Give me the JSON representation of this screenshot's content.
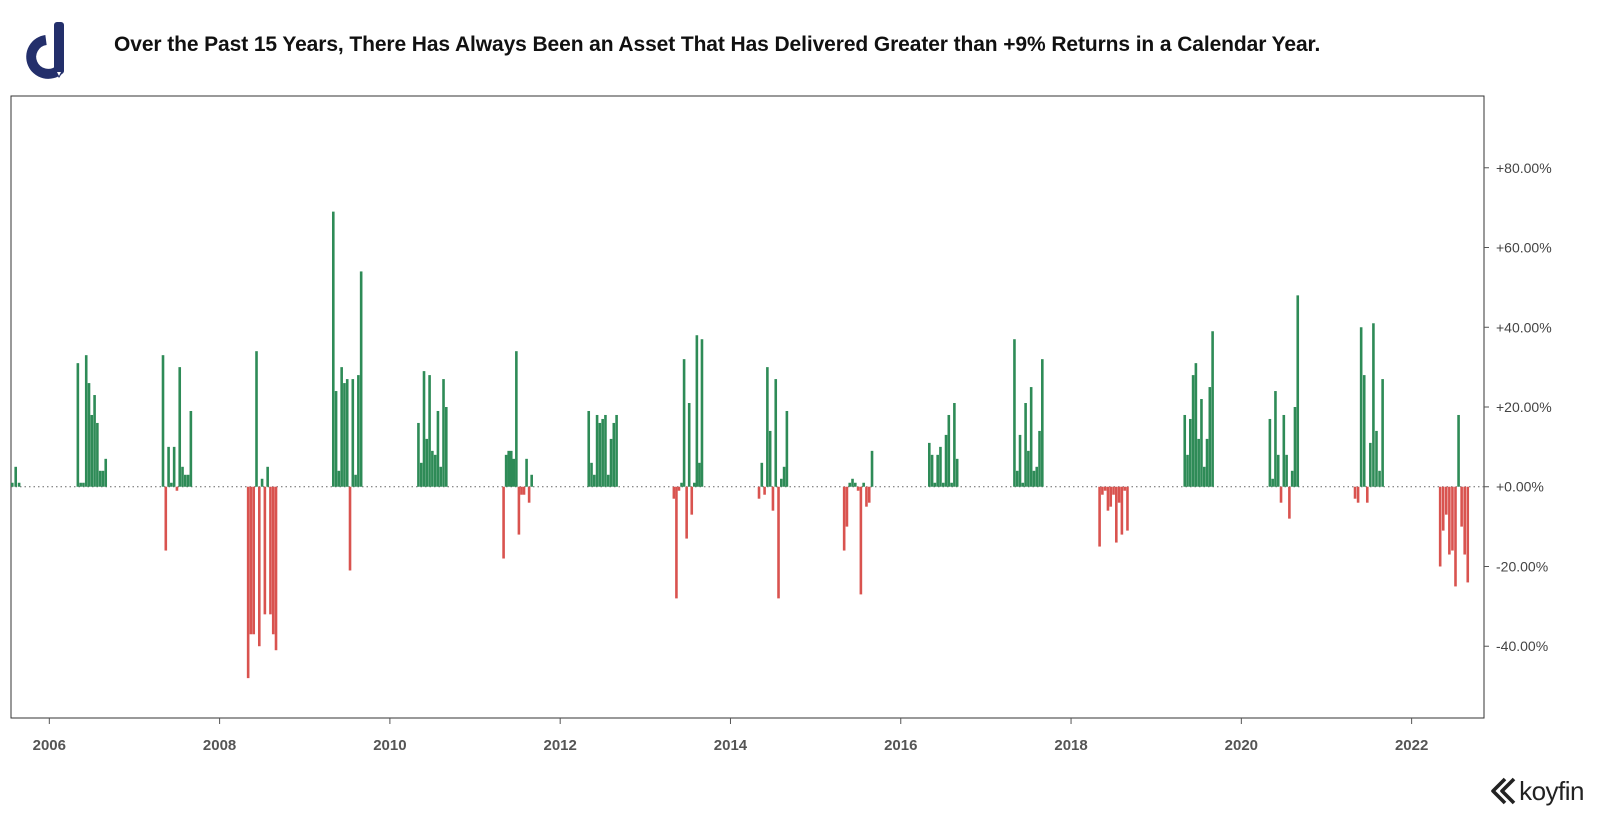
{
  "header": {
    "title": "Over the Past 15 Years, There Has Always Been an Asset That Has Delivered Greater than +9% Returns in a Calendar Year."
  },
  "brand": {
    "logo_icon": "d-pen-logo-icon",
    "text": "koyfin",
    "icon": "koyfin-chevron-icon"
  },
  "colors": {
    "positive": "#2e8b57",
    "negative": "#d9534f",
    "logo_blue": "#232f6b"
  },
  "chart_data": {
    "type": "bar",
    "title": "",
    "xlabel": "",
    "ylabel": "",
    "xlim": [
      2005.55,
      2022.85
    ],
    "ylim": [
      -58,
      98
    ],
    "x_ticks": [
      2006,
      2008,
      2010,
      2012,
      2014,
      2016,
      2018,
      2020,
      2022
    ],
    "x_tick_labels": [
      "2006",
      "2008",
      "2010",
      "2012",
      "2014",
      "2016",
      "2018",
      "2020",
      "2022"
    ],
    "y_ticks": [
      80,
      60,
      40,
      20,
      0,
      -20,
      -40
    ],
    "y_tick_labels": [
      "+80.00%",
      "+60.00%",
      "+40.00%",
      "+20.00%",
      "+0.00%",
      "-20.00%",
      "-40.00%"
    ],
    "grid": false,
    "zero_line": "dotted",
    "y_axis_position": "right",
    "annual_returns": [
      {
        "year": 2005,
        "values": [
          1,
          5,
          1
        ]
      },
      {
        "year": 2006,
        "values": [
          31,
          1,
          1,
          33,
          26,
          18,
          23,
          16,
          4,
          4,
          7
        ]
      },
      {
        "year": 2007,
        "values": [
          33,
          -16,
          10,
          1,
          10,
          -1,
          30,
          5,
          3,
          3,
          19
        ]
      },
      {
        "year": 2008,
        "values": [
          -48,
          -37,
          -37,
          34,
          -40,
          2,
          -32,
          5,
          -32,
          -37,
          -41
        ]
      },
      {
        "year": 2009,
        "values": [
          69,
          24,
          4,
          30,
          26,
          27,
          -21,
          27,
          3,
          28,
          54
        ]
      },
      {
        "year": 2010,
        "values": [
          16,
          6,
          29,
          12,
          28,
          9,
          8,
          19,
          5,
          27,
          20
        ]
      },
      {
        "year": 2011,
        "values": [
          -18,
          8,
          9,
          9,
          7,
          34,
          -12,
          -2,
          -2,
          7,
          -4,
          3
        ]
      },
      {
        "year": 2012,
        "values": [
          19,
          6,
          3,
          18,
          16,
          17,
          18,
          3,
          12,
          16,
          18
        ]
      },
      {
        "year": 2013,
        "values": [
          -3,
          -28,
          -1,
          1,
          32,
          -13,
          21,
          -7,
          1,
          38,
          6,
          37
        ]
      },
      {
        "year": 2014,
        "values": [
          -3,
          6,
          -2,
          30,
          14,
          -6,
          27,
          -28,
          2,
          5,
          19
        ]
      },
      {
        "year": 2015,
        "values": [
          -16,
          -10,
          1,
          2,
          1,
          -1,
          -27,
          1,
          -5,
          -4,
          9
        ]
      },
      {
        "year": 2016,
        "values": [
          11,
          8,
          1,
          8,
          10,
          1,
          13,
          18,
          1,
          21,
          7
        ]
      },
      {
        "year": 2017,
        "values": [
          37,
          4,
          13,
          1,
          21,
          9,
          25,
          4,
          5,
          14,
          32
        ]
      },
      {
        "year": 2018,
        "values": [
          -15,
          -2,
          -1,
          -6,
          -5,
          -2,
          -14,
          -4,
          -12,
          -1,
          -11
        ]
      },
      {
        "year": 2019,
        "values": [
          18,
          8,
          17,
          28,
          31,
          12,
          22,
          5,
          12,
          25,
          39
        ]
      },
      {
        "year": 2020,
        "values": [
          17,
          2,
          24,
          8,
          -4,
          18,
          8,
          -8,
          4,
          20,
          48
        ]
      },
      {
        "year": 2021,
        "values": [
          -3,
          -4,
          40,
          28,
          -4,
          11,
          41,
          14,
          4,
          27
        ]
      },
      {
        "year": 2022,
        "values": [
          -20,
          -11,
          -7,
          -17,
          -16,
          -25,
          18,
          -10,
          -17,
          -24
        ]
      }
    ]
  }
}
